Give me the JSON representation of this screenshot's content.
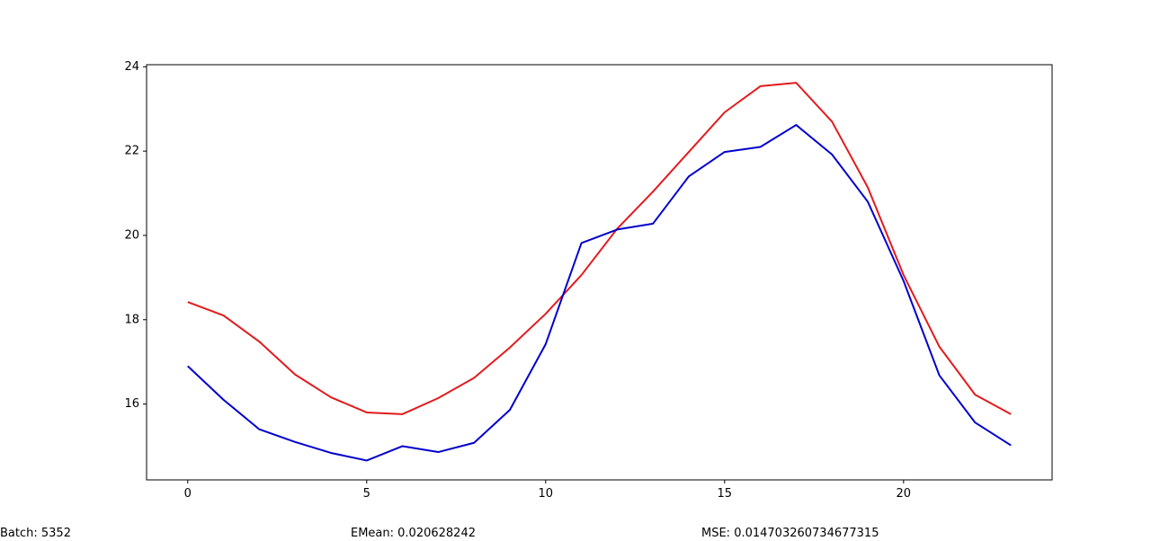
{
  "chart_data": {
    "type": "line",
    "title": "",
    "xlabel": "",
    "ylabel": "",
    "xlim": [
      -1.15,
      24.15
    ],
    "ylim": [
      14.2,
      24.05
    ],
    "grid": false,
    "legend": "none",
    "x_ticks": [
      0,
      5,
      10,
      15,
      20
    ],
    "y_ticks": [
      16,
      18,
      20,
      22,
      24
    ],
    "x": [
      0,
      1,
      2,
      3,
      4,
      5,
      6,
      7,
      8,
      9,
      10,
      11,
      12,
      13,
      14,
      15,
      16,
      17,
      18,
      19,
      20,
      21,
      22,
      23
    ],
    "series": [
      {
        "color": "#e31a1c",
        "values": [
          18.42,
          18.1,
          17.48,
          16.7,
          16.16,
          15.8,
          15.76,
          16.14,
          16.62,
          17.34,
          18.14,
          19.06,
          20.16,
          21.04,
          21.98,
          22.92,
          23.54,
          23.62,
          22.7,
          21.14,
          19.06,
          17.36,
          16.22,
          15.76
        ]
      },
      {
        "color": "#0000cd",
        "values": [
          16.9,
          16.1,
          15.4,
          15.1,
          14.84,
          14.66,
          15.0,
          14.86,
          15.08,
          15.86,
          17.42,
          19.82,
          20.14,
          20.28,
          21.4,
          21.98,
          22.1,
          22.62,
          21.92,
          20.8,
          18.92,
          16.68,
          15.56,
          15.02
        ]
      }
    ]
  },
  "footer": {
    "batch": "Batch: 5352",
    "emean": "EMean: 0.020628242",
    "mse": "MSE: 0.014703260734677315"
  }
}
